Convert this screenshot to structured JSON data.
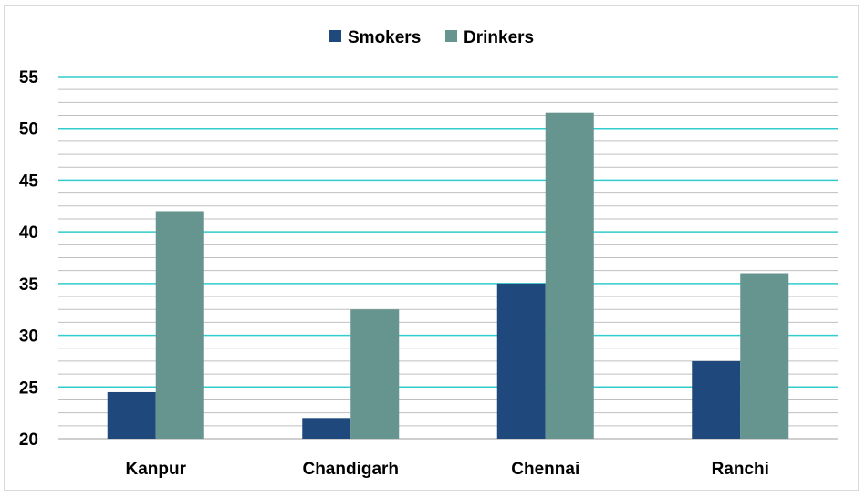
{
  "chart_data": {
    "type": "bar",
    "categories": [
      "Kanpur",
      "Chandigarh",
      "Chennai",
      "Ranchi"
    ],
    "series": [
      {
        "name": "Smokers",
        "values": [
          24.5,
          22,
          35,
          27.5
        ],
        "color": "#1f497d"
      },
      {
        "name": "Drinkers",
        "values": [
          42,
          32.5,
          51.5,
          36
        ],
        "color": "#66948f"
      }
    ],
    "ylim": [
      20,
      55
    ],
    "yticks": [
      20,
      25,
      30,
      35,
      40,
      45,
      50,
      55
    ],
    "minor_step": 1.25,
    "legend_position": "top-center",
    "grid": true,
    "major_grid_color": "#33cccc",
    "minor_grid_color": "#bfbfbf"
  }
}
